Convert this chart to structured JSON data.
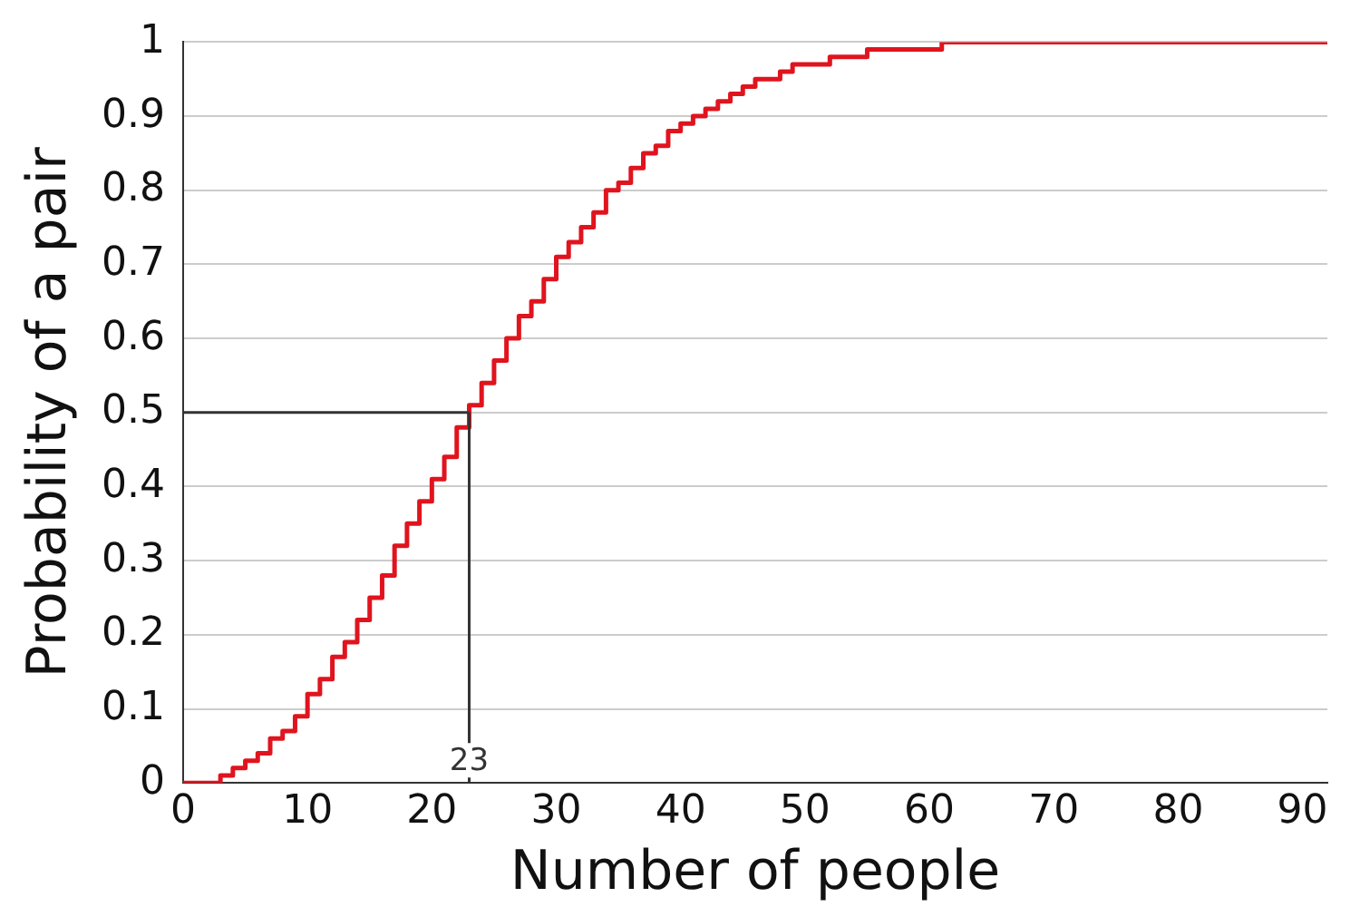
{
  "chart_data": {
    "type": "step",
    "xlabel": "Number of people",
    "ylabel": "Probability of a pair",
    "x": [
      0,
      1,
      2,
      3,
      4,
      5,
      6,
      7,
      8,
      9,
      10,
      11,
      12,
      13,
      14,
      15,
      16,
      17,
      18,
      19,
      20,
      21,
      22,
      23,
      24,
      25,
      26,
      27,
      28,
      29,
      30,
      31,
      32,
      33,
      34,
      35,
      36,
      37,
      38,
      39,
      40,
      41,
      42,
      43,
      44,
      45,
      46,
      47,
      48,
      49,
      50,
      51,
      52,
      53,
      54,
      55,
      56,
      57,
      58,
      59,
      60,
      61,
      62,
      63,
      64,
      65,
      66,
      67,
      68,
      69,
      70,
      71,
      72,
      73,
      74,
      75,
      76,
      77,
      78,
      79,
      80,
      81,
      82,
      83,
      84,
      85,
      86,
      87,
      88,
      89,
      90,
      91,
      92
    ],
    "series": [
      {
        "color": "#e0141e",
        "values": [
          0,
          0,
          0,
          0.01,
          0.02,
          0.03,
          0.04,
          0.06,
          0.07,
          0.09,
          0.12,
          0.14,
          0.17,
          0.19,
          0.22,
          0.25,
          0.28,
          0.32,
          0.35,
          0.38,
          0.41,
          0.44,
          0.48,
          0.51,
          0.54,
          0.57,
          0.6,
          0.63,
          0.65,
          0.68,
          0.71,
          0.73,
          0.75,
          0.77,
          0.8,
          0.81,
          0.83,
          0.85,
          0.86,
          0.88,
          0.89,
          0.9,
          0.91,
          0.92,
          0.93,
          0.94,
          0.95,
          0.95,
          0.96,
          0.97,
          0.97,
          0.97,
          0.98,
          0.98,
          0.98,
          0.99,
          0.99,
          0.99,
          0.99,
          0.99,
          0.99,
          1,
          1,
          1,
          1,
          1,
          1,
          1,
          1,
          1,
          1,
          1,
          1,
          1,
          1,
          1,
          1,
          1,
          1,
          1,
          1,
          1,
          1,
          1,
          1,
          1,
          1,
          1,
          1,
          1,
          1,
          1,
          1
        ]
      }
    ],
    "xlim": [
      0,
      92
    ],
    "xticks": [
      0,
      10,
      20,
      30,
      40,
      50,
      60,
      70,
      80,
      90
    ],
    "ylim": [
      0,
      1
    ],
    "yticks": [
      0,
      0.1,
      0.2,
      0.3,
      0.4,
      0.5,
      0.6,
      0.7,
      0.8,
      0.9,
      1
    ],
    "grid": "y",
    "legend": false,
    "ref_lines": [
      {
        "axis": "x",
        "value": 23,
        "label": "23",
        "color": "#333333"
      },
      {
        "axis": "y",
        "value": 0.5,
        "color": "#333333"
      }
    ]
  }
}
